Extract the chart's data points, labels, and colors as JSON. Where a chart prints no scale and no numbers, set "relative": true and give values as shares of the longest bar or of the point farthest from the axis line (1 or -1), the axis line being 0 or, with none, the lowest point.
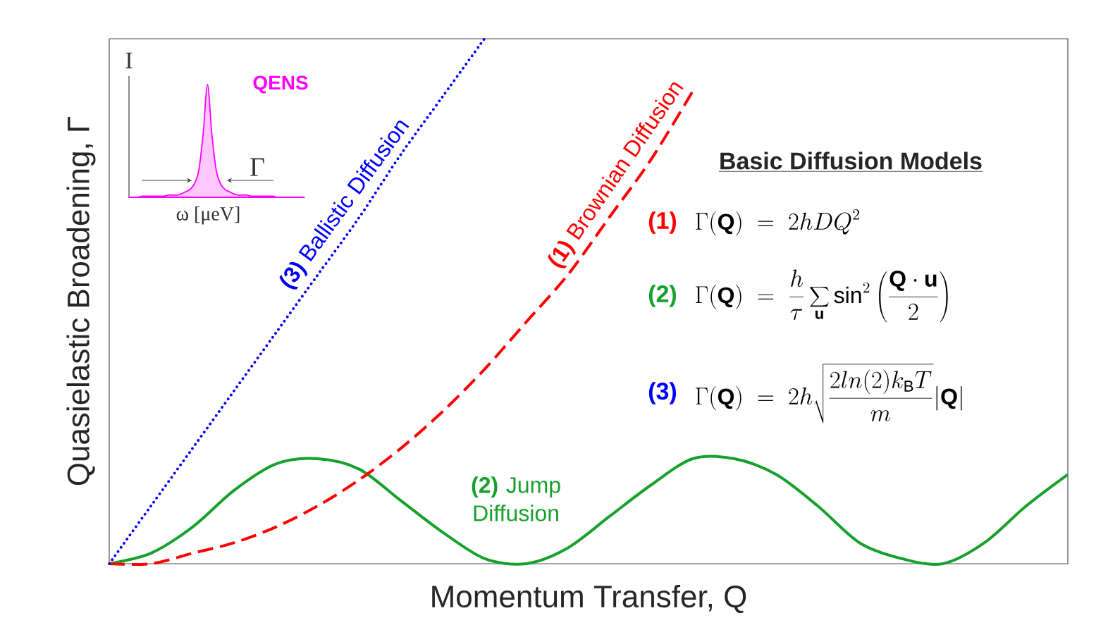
{
  "chart_data": [
    {
      "type": "line",
      "relative": true,
      "xlabel": "Momentum Transfer, Q",
      "ylabel": "Quasielastic Broadening, Γ",
      "categories": [
        null,
        null,
        null,
        null,
        null,
        null,
        null,
        null,
        null,
        null,
        null,
        null,
        null,
        null,
        null,
        null,
        null,
        null,
        null,
        null,
        null,
        null,
        null,
        null
      ],
      "series": [
        {
          "name": "**(3)** Ballistic Diffusion",
          "color": "#0000ff",
          "line_style": "dotted",
          "values": [
            0,
            0.11,
            0.22,
            0.33,
            0.44,
            0.55,
            0.66,
            0.78,
            0.89,
            1,
            null,
            null,
            null,
            null,
            null,
            null,
            null,
            null,
            null,
            null,
            null,
            null,
            null,
            null
          ]
        },
        {
          "name": "**(1)** Brownian Diffusion",
          "color": "#ff0000",
          "line_style": "dashed",
          "values": [
            0,
            0,
            0.02,
            0.04,
            0.07,
            0.11,
            0.16,
            0.22,
            0.29,
            0.37,
            0.46,
            0.55,
            0.66,
            0.77,
            0.9,
            null,
            null,
            null,
            null,
            null,
            null,
            null,
            null,
            null
          ]
        },
        {
          "name": "**(2)** Jump Diffusion",
          "type": "line",
          "color": "#16a02c",
          "line_style": "solid",
          "values": [
            0,
            0.02,
            0.07,
            0.14,
            0.19,
            0.2,
            0.18,
            0.12,
            0.06,
            0.01,
            0,
            0.03,
            0.09,
            0.15,
            0.2,
            0.2,
            0.17,
            0.11,
            0.04,
            0.01,
            0,
            0.04,
            0.11,
            0.17
          ]
        }
      ],
      "annotations": [
        "Basic Diffusion Models",
        "(1)",
        "\\Gamma(\\mathbf{Q}) \\;=\\; 2hDQ^2",
        "(2)",
        "\\Gamma(\\mathbf{Q}) \\;=\\; \\frac{h}{\\tau}\\sum_{\\mathbf{u}}\\sin^2\\left(\\frac{\\mathbf{Q}\\cdot\\mathbf{u}}{2}\\right)",
        "(3)",
        "\\Gamma(\\mathbf{Q}) \\;=\\; 2h\\sqrt{\\frac{2ln(2)k_{\\mathrm{B}}T}{m}}|\\mathbf{Q}|"
      ]
    },
    {
      "type": "area",
      "relative": true,
      "xlabel": "ω [μeV]",
      "ylabel": "I",
      "categories": [
        null,
        null,
        null,
        null,
        null,
        null,
        null,
        null,
        null,
        null,
        null,
        null,
        null,
        null,
        null,
        null,
        null,
        null,
        null,
        null,
        null,
        null,
        null,
        null,
        null,
        null,
        null,
        null,
        null,
        null,
        null,
        null,
        null,
        null,
        null,
        null,
        null,
        null,
        null,
        null,
        null
      ],
      "series": [
        {
          "name": "QENS",
          "color": "#ff00ff",
          "values": [
            0,
            0,
            0,
            0.01,
            0.01,
            0.01,
            0.01,
            0.01,
            0.01,
            0.02,
            0.02,
            0.02,
            0.03,
            0.05,
            0.07,
            0.12,
            0.24,
            0.56,
            1,
            0.56,
            0.24,
            0.12,
            0.07,
            0.05,
            0.03,
            0.02,
            0.02,
            0.02,
            0.01,
            0.01,
            0.01,
            0.01,
            0.01,
            0.01,
            0,
            0,
            0,
            0,
            0,
            0,
            0
          ]
        }
      ],
      "annotations": [
        "Γ"
      ]
    }
  ]
}
